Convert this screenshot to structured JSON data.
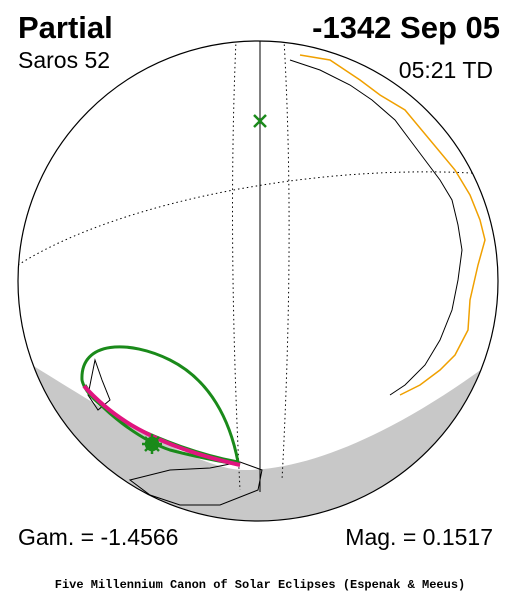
{
  "header": {
    "title": "Partial",
    "date": "-1342 Sep 05",
    "saros": "Saros  52",
    "time": "05:21 TD"
  },
  "parameters": {
    "gamma": "Gam. = -1.4566",
    "magnitude": "Mag. = 0.1517"
  },
  "footer": "Five Millennium Canon of Solar Eclipses (Espenak & Meeus)"
}
